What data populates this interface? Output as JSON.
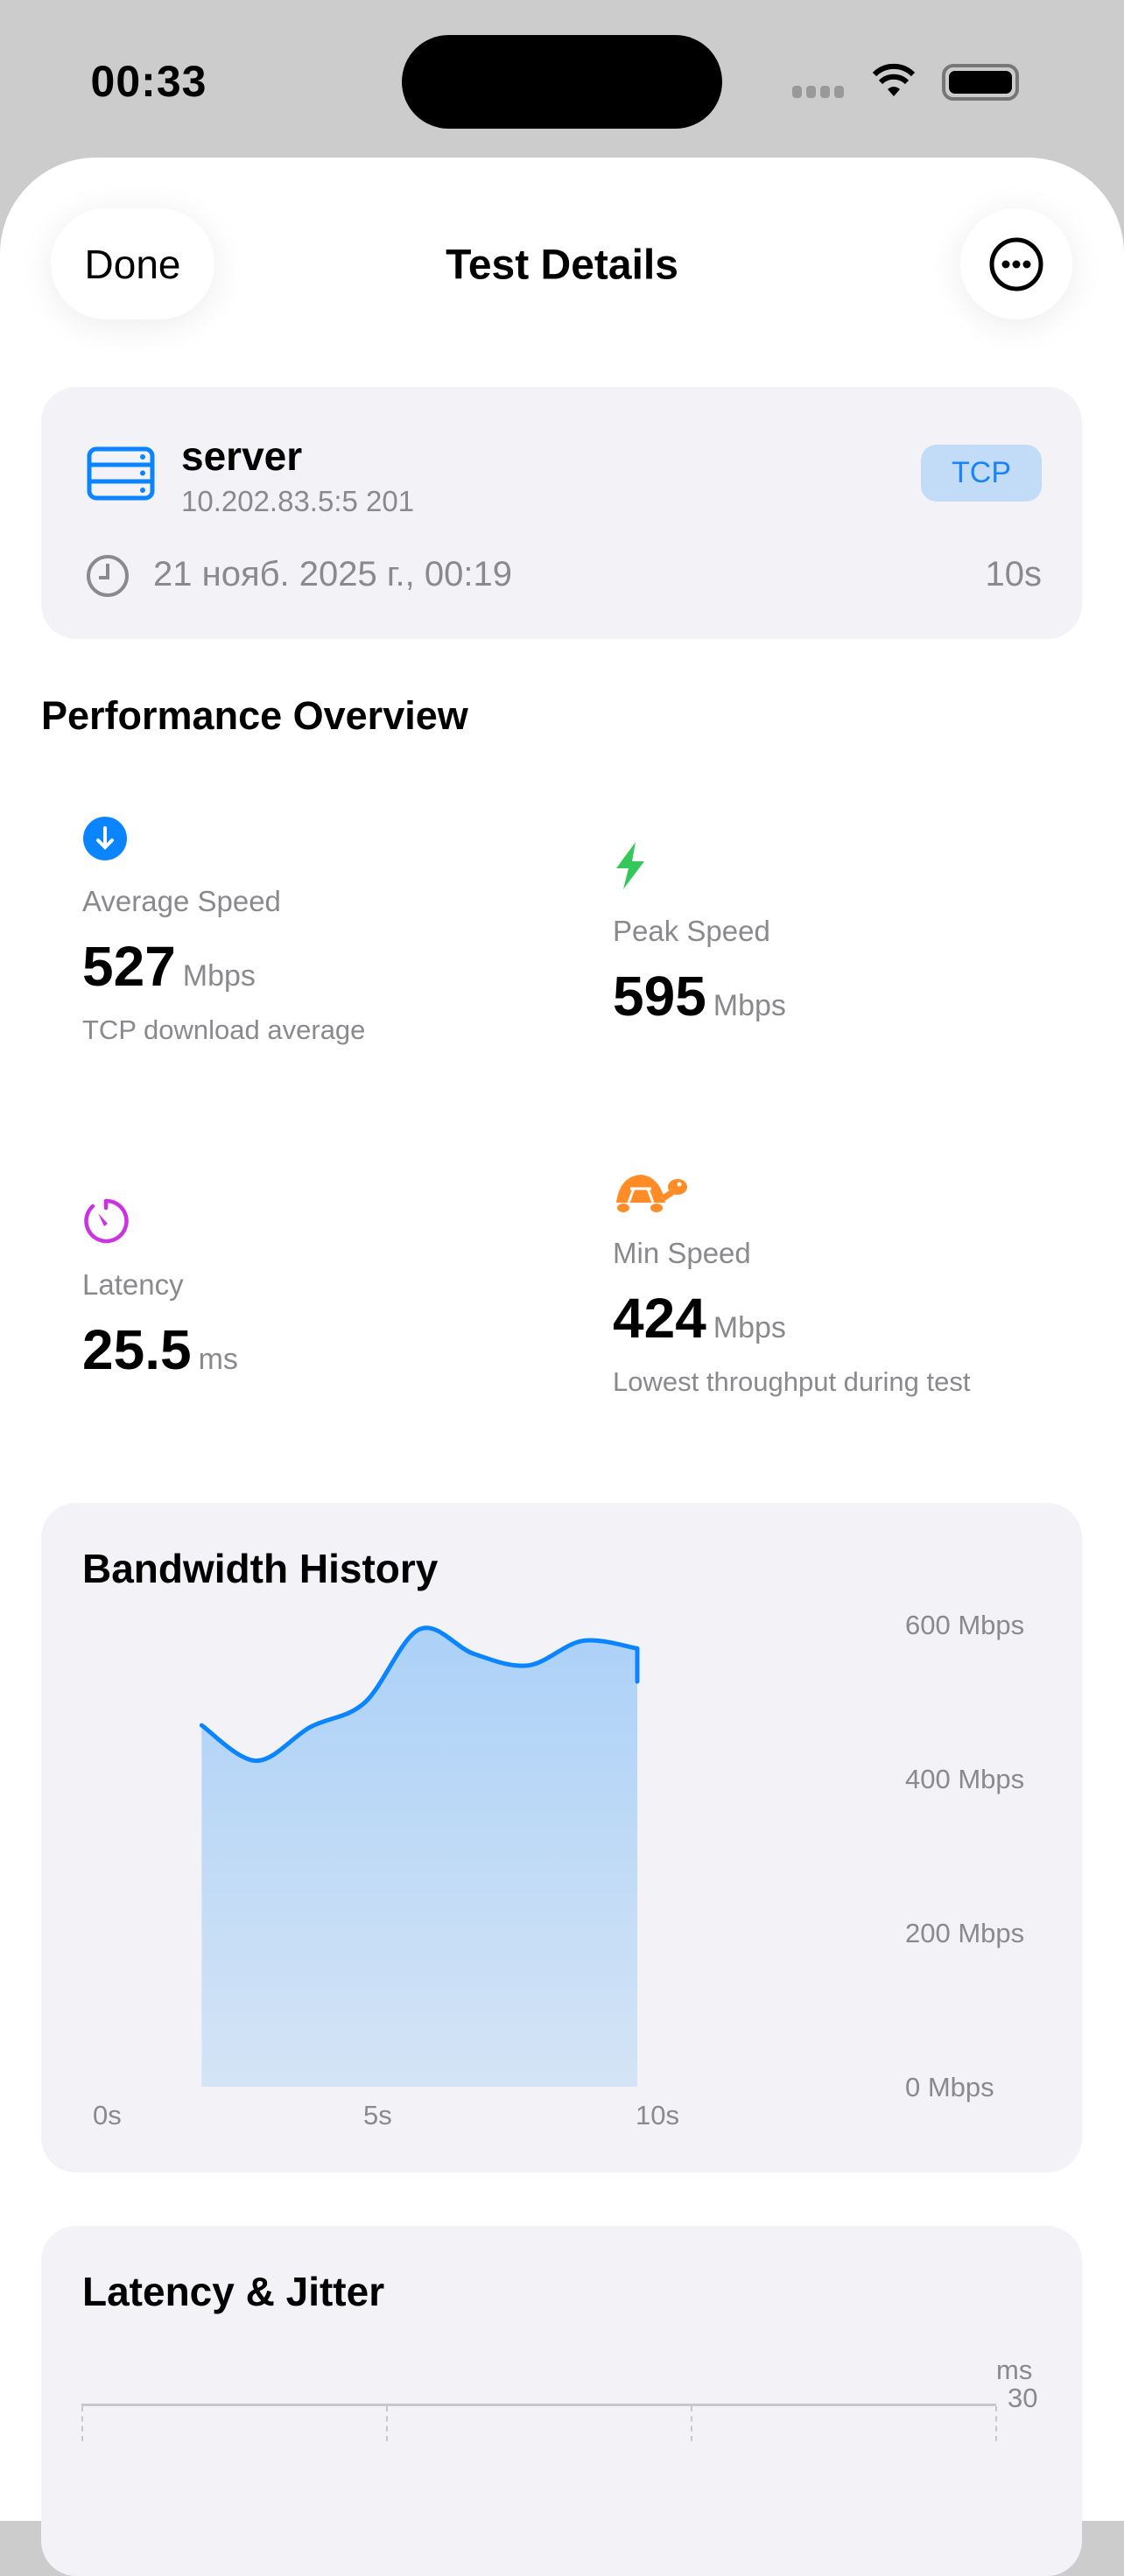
{
  "status_bar": {
    "time": "00:33"
  },
  "nav": {
    "done_label": "Done",
    "title": "Test Details",
    "more_icon": "ellipsis-circle-icon"
  },
  "server": {
    "name": "server",
    "address": "10.202.83.5:5 201",
    "protocol": "TCP",
    "date": "21 нояб. 2025 г., 00:19",
    "duration": "10s"
  },
  "performance": {
    "title": "Performance Overview",
    "average": {
      "label": "Average Speed",
      "value": "527",
      "unit": "Mbps",
      "note": "TCP download average",
      "icon": "arrow-down-circle-icon",
      "color": "#0a84ff"
    },
    "peak": {
      "label": "Peak Speed",
      "value": "595",
      "unit": "Mbps",
      "icon": "bolt-icon",
      "color": "#34c759"
    },
    "latency": {
      "label": "Latency",
      "value": "25.5",
      "unit": "ms",
      "icon": "timer-icon",
      "color": "#cc33e0"
    },
    "min": {
      "label": "Min Speed",
      "value": "424",
      "unit": "Mbps",
      "note": "Lowest throughput during test",
      "icon": "tortoise-icon",
      "color": "#ff8c26"
    }
  },
  "chart_data": [
    {
      "type": "area",
      "title": "Bandwidth History",
      "x": [
        2,
        3,
        4,
        5,
        6,
        7,
        8,
        9,
        10,
        10
      ],
      "values": [
        470,
        424,
        468,
        500,
        595,
        563,
        548,
        580,
        570,
        527
      ],
      "xlim": [
        0,
        10
      ],
      "ylim": [
        0,
        600
      ],
      "x_ticks": [
        "0s",
        "5s",
        "10s"
      ],
      "y_ticks": [
        "600 Mbps",
        "400 Mbps",
        "200 Mbps",
        "0 Mbps"
      ],
      "color": "#0a84ff",
      "grid": false
    },
    {
      "type": "line",
      "title": "Latency & Jitter",
      "ylabel": "ms",
      "y_ticks": [
        "30"
      ]
    }
  ]
}
